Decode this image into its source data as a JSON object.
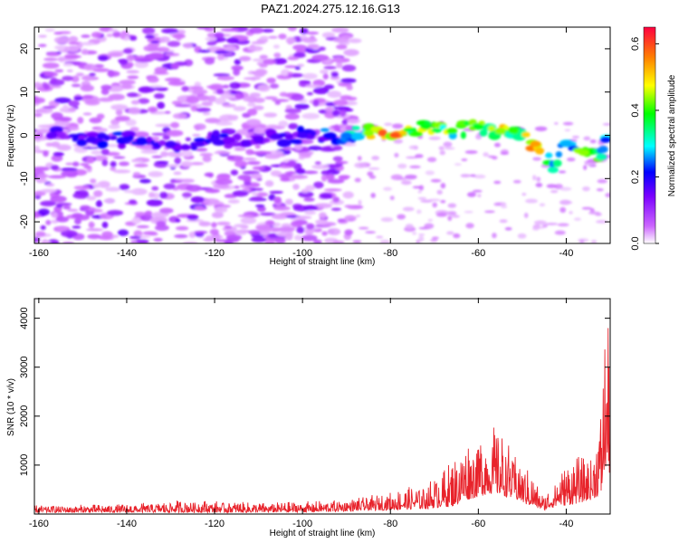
{
  "title": "PAZ1.2024.275.12.16.G13",
  "colors": {
    "snr_line": "#e8232b",
    "frame": "#000000"
  },
  "chart_data": [
    {
      "type": "heatmap",
      "xlabel": "Height of straight line (km)",
      "ylabel": "Frequency (Hz)",
      "xlim": [
        -161,
        -30
      ],
      "ylim": [
        -25,
        25
      ],
      "xticks": [
        -160,
        -140,
        -120,
        -100,
        -80,
        -60,
        -40
      ],
      "yticks": [
        -20,
        -10,
        0,
        10,
        20
      ],
      "colorbar": {
        "label": "Normalized spectral amplitude",
        "range": [
          0,
          0.65
        ],
        "ticks": [
          "0.0",
          "0.2",
          "0.4",
          "0.6"
        ],
        "colors": [
          "#ffffff",
          "#cc66ff",
          "#7a00ff",
          "#0000ff",
          "#00ffff",
          "#00ff00",
          "#ffff00",
          "#ff8000",
          "#ff0040"
        ]
      },
      "ridge": [
        {
          "x": -157,
          "y": 0,
          "v": 0.18
        },
        {
          "x": -148,
          "y": -1,
          "v": 0.2
        },
        {
          "x": -140,
          "y": -1,
          "v": 0.22
        },
        {
          "x": -130,
          "y": -2,
          "v": 0.2
        },
        {
          "x": -120,
          "y": -1,
          "v": 0.2
        },
        {
          "x": -110,
          "y": -1,
          "v": 0.18
        },
        {
          "x": -100,
          "y": 0,
          "v": 0.2
        },
        {
          "x": -90,
          "y": 0,
          "v": 0.28
        },
        {
          "x": -85,
          "y": 0.5,
          "v": 0.45
        },
        {
          "x": -79,
          "y": 0,
          "v": 0.6
        },
        {
          "x": -72,
          "y": 2,
          "v": 0.4
        },
        {
          "x": -66,
          "y": 1,
          "v": 0.42
        },
        {
          "x": -60,
          "y": 2,
          "v": 0.4
        },
        {
          "x": -55,
          "y": 1,
          "v": 0.45
        },
        {
          "x": -52,
          "y": 1,
          "v": 0.42
        },
        {
          "x": -47,
          "y": -2,
          "v": 0.55
        },
        {
          "x": -43,
          "y": -8,
          "v": 0.35
        },
        {
          "x": -40,
          "y": -2,
          "v": 0.3
        },
        {
          "x": -36,
          "y": -4,
          "v": 0.45
        },
        {
          "x": -32,
          "y": -5,
          "v": 0.35
        },
        {
          "x": -31,
          "y": -1,
          "v": 0.25
        }
      ]
    },
    {
      "type": "line",
      "xlabel": "Height of straight line (km)",
      "ylabel": "SNR (10 * v/v)",
      "xlim": [
        -161,
        -30
      ],
      "ylim": [
        0,
        4400
      ],
      "xticks": [
        -160,
        -140,
        -120,
        -100,
        -80,
        -60,
        -40
      ],
      "yticks": [
        1000,
        2000,
        3000,
        4000
      ],
      "series": [
        {
          "color": "#e8232b",
          "envelope": [
            {
              "x": -161,
              "lo": 30,
              "hi": 200
            },
            {
              "x": -140,
              "lo": 30,
              "hi": 220
            },
            {
              "x": -126,
              "lo": 30,
              "hi": 330
            },
            {
              "x": -110,
              "lo": 30,
              "hi": 250
            },
            {
              "x": -95,
              "lo": 40,
              "hi": 300
            },
            {
              "x": -88,
              "lo": 60,
              "hi": 350
            },
            {
              "x": -80,
              "lo": 80,
              "hi": 500
            },
            {
              "x": -72,
              "lo": 100,
              "hi": 700
            },
            {
              "x": -66,
              "lo": 150,
              "hi": 1200
            },
            {
              "x": -62,
              "lo": 300,
              "hi": 1700
            },
            {
              "x": -58,
              "lo": 400,
              "hi": 1800
            },
            {
              "x": -56,
              "lo": 400,
              "hi": 2000
            },
            {
              "x": -52,
              "lo": 300,
              "hi": 1400
            },
            {
              "x": -48,
              "lo": 150,
              "hi": 900
            },
            {
              "x": -45,
              "lo": 80,
              "hi": 400
            },
            {
              "x": -42,
              "lo": 150,
              "hi": 900
            },
            {
              "x": -38,
              "lo": 200,
              "hi": 1300
            },
            {
              "x": -34,
              "lo": 300,
              "hi": 1200
            },
            {
              "x": -32,
              "lo": 400,
              "hi": 2600
            },
            {
              "x": -31,
              "lo": 900,
              "hi": 4400
            },
            {
              "x": -30,
              "lo": 800,
              "hi": 3900
            }
          ]
        }
      ]
    }
  ]
}
